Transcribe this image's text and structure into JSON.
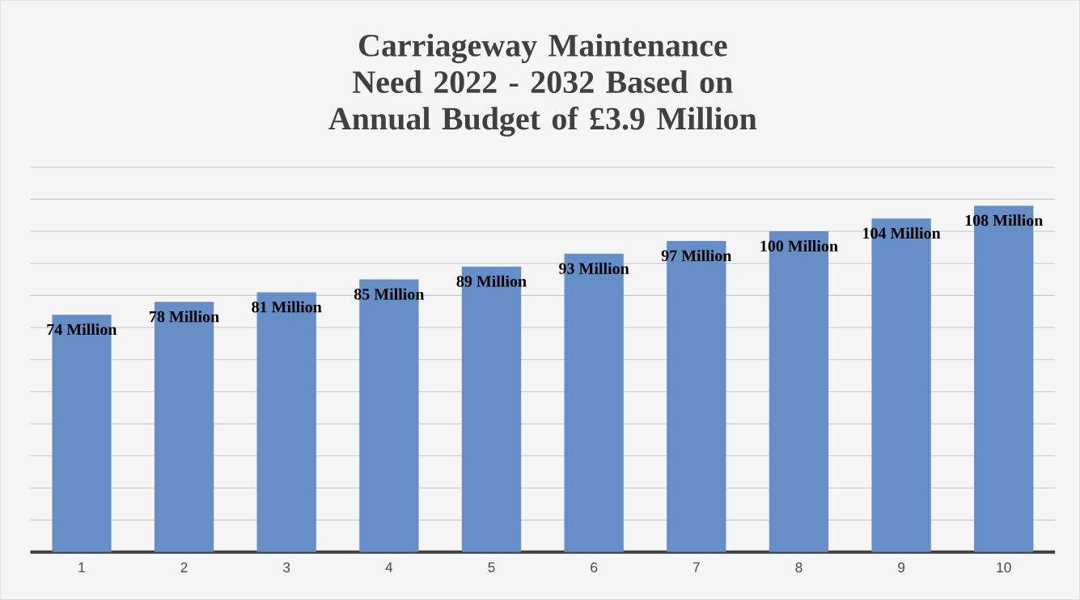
{
  "chart_data": {
    "type": "bar",
    "title": "Carriageway Maintenance Need 2022 - 2032 Based on Annual Budget of £3.9 Million",
    "categories": [
      "1",
      "2",
      "3",
      "4",
      "5",
      "6",
      "7",
      "8",
      "9",
      "10"
    ],
    "values": [
      74,
      78,
      81,
      85,
      89,
      93,
      97,
      100,
      104,
      108
    ],
    "value_labels": [
      "74 Million",
      "78 Million",
      "81 Million",
      "85 Million",
      "89 Million",
      "93 Million",
      "97 Million",
      "100 Million",
      "104 Million",
      "108 Million"
    ],
    "color": "#658fc6",
    "grid": "y",
    "tick_labels": "x"
  }
}
